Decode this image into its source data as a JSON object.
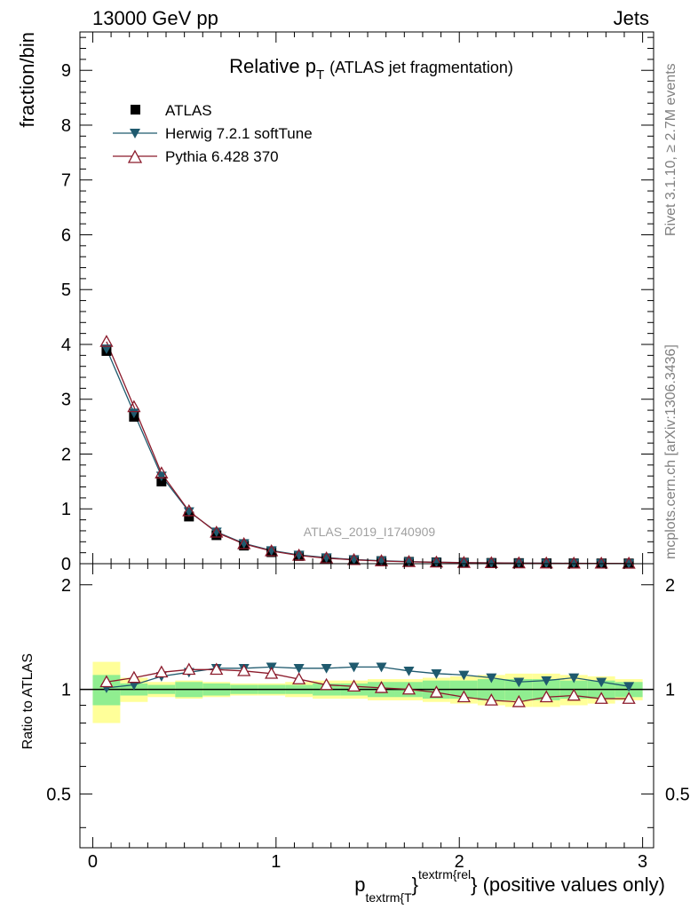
{
  "header": {
    "left": "13000 GeV pp",
    "right": "Jets"
  },
  "side_labels": {
    "rivet": "Rivet 3.1.10, ≥ 2.7M events",
    "mcplots": "mcplots.cern.ch [arXiv:1306.3436]"
  },
  "watermark": "ATLAS_2019_I1740909",
  "chart_data": {
    "type": "scatter",
    "title_main": "Relative p",
    "title_sub": "T",
    "title_suffix": "(ATLAS jet fragmentation)",
    "xlabel_p": "p",
    "xlabel_sub": "textrm{T",
    "xlabel_brace": "}",
    "xlabel_sup": "textrm{rel",
    "xlabel_suffix": "} (positive values only)",
    "ylabel": "fraction/bin",
    "ratio_ylabel": "Ratio to ATLAS",
    "xlim": [
      -0.07,
      3.06
    ],
    "ylim": [
      0,
      9.7
    ],
    "ratio_ylim": [
      0.35,
      2.3
    ],
    "xticks": [
      0,
      1,
      2,
      3
    ],
    "yticks": [
      0,
      1,
      2,
      3,
      4,
      5,
      6,
      7,
      8,
      9
    ],
    "ratio_yticks": [
      0.5,
      1,
      2
    ],
    "ratio_tick_labels": [
      "0.5",
      "1",
      "2"
    ],
    "x": [
      0.075,
      0.225,
      0.375,
      0.525,
      0.675,
      0.825,
      0.975,
      1.125,
      1.275,
      1.425,
      1.575,
      1.725,
      1.875,
      2.025,
      2.175,
      2.325,
      2.475,
      2.625,
      2.775,
      2.925
    ],
    "bin_edges": [
      0.0,
      0.15,
      0.3,
      0.45,
      0.6,
      0.75,
      0.9,
      1.05,
      1.2,
      1.35,
      1.5,
      1.65,
      1.8,
      1.95,
      2.1,
      2.25,
      2.4,
      2.55,
      2.7,
      2.85,
      3.0
    ],
    "legend": [
      "ATLAS",
      "Herwig 7.2.1 softTune",
      "Pythia 6.428 370"
    ],
    "series": [
      {
        "name": "ATLAS",
        "color": "#000000",
        "marker": "square",
        "values": [
          3.88,
          2.68,
          1.5,
          0.86,
          0.52,
          0.33,
          0.21,
          0.14,
          0.095,
          0.066,
          0.047,
          0.034,
          0.025,
          0.018,
          0.014,
          0.011,
          0.008,
          0.006,
          0.005,
          0.004
        ]
      },
      {
        "name": "Herwig 7.2.1 softTune",
        "color": "#1f5a6e",
        "marker": "triangle-down",
        "values": [
          3.92,
          2.75,
          1.6,
          0.95,
          0.58,
          0.37,
          0.24,
          0.16,
          0.11,
          0.076,
          0.054,
          0.038,
          0.028,
          0.02,
          0.015,
          0.012,
          0.009,
          0.007,
          0.005,
          0.004
        ]
      },
      {
        "name": "Pythia 6.428 370",
        "color": "#8b1a2b",
        "marker": "triangle-up-open",
        "values": [
          4.05,
          2.86,
          1.65,
          0.96,
          0.57,
          0.36,
          0.23,
          0.15,
          0.1,
          0.07,
          0.049,
          0.035,
          0.025,
          0.018,
          0.013,
          0.01,
          0.008,
          0.006,
          0.005,
          0.004
        ]
      }
    ],
    "ratio_series": [
      {
        "name": "Herwig 7.2.1 softTune",
        "values": [
          1.01,
          1.03,
          1.09,
          1.12,
          1.15,
          1.15,
          1.16,
          1.15,
          1.15,
          1.16,
          1.16,
          1.13,
          1.11,
          1.1,
          1.08,
          1.05,
          1.06,
          1.08,
          1.05,
          1.02
        ]
      },
      {
        "name": "Pythia 6.428 370",
        "values": [
          1.05,
          1.08,
          1.12,
          1.14,
          1.14,
          1.13,
          1.11,
          1.07,
          1.03,
          1.02,
          1.01,
          1.0,
          0.98,
          0.95,
          0.93,
          0.92,
          0.95,
          0.96,
          0.94,
          0.94
        ]
      }
    ],
    "band_inner": [
      0.1,
      0.04,
      0.03,
      0.05,
      0.04,
      0.03,
      0.03,
      0.03,
      0.04,
      0.04,
      0.05,
      0.05,
      0.06,
      0.06,
      0.07,
      0.07,
      0.07,
      0.06,
      0.06,
      0.05
    ],
    "band_outer": [
      0.2,
      0.08,
      0.05,
      0.06,
      0.05,
      0.04,
      0.04,
      0.05,
      0.06,
      0.06,
      0.07,
      0.07,
      0.08,
      0.09,
      0.1,
      0.11,
      0.11,
      0.1,
      0.09,
      0.07
    ],
    "band_colors": {
      "inner": "#90ee90",
      "outer": "#ffff99"
    }
  }
}
